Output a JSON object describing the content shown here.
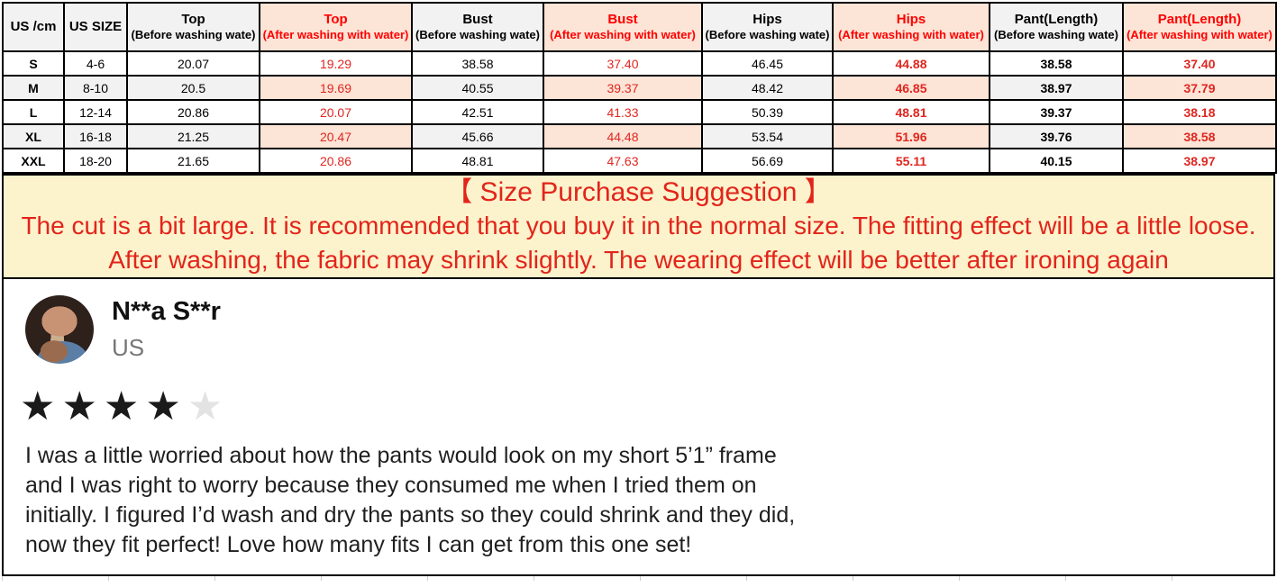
{
  "size_chart": {
    "columns": [
      {
        "label": "US /cm",
        "variant": "plain"
      },
      {
        "label": "US SIZE",
        "variant": "plain"
      },
      {
        "title": "Top",
        "sub": "(Before washing wate)",
        "variant": "before"
      },
      {
        "title": "Top",
        "sub": "(After washing with water)",
        "variant": "after"
      },
      {
        "title": "Bust",
        "sub": "(Before washing wate)",
        "variant": "before"
      },
      {
        "title": "Bust",
        "sub": "(After washing with water)",
        "variant": "after"
      },
      {
        "title": "Hips",
        "sub": "(Before washing wate)",
        "variant": "before"
      },
      {
        "title": "Hips",
        "sub": "(After washing with water)",
        "variant": "after"
      },
      {
        "title": "Pant(Length)",
        "sub": "(Before washing wate)",
        "variant": "before"
      },
      {
        "title": "Pant(Length)",
        "sub": "(After washing with water)",
        "variant": "after"
      }
    ],
    "rows": [
      [
        "S",
        "4-6",
        "20.07",
        "19.29",
        "38.58",
        "37.40",
        "46.45",
        "44.88",
        "38.58",
        "37.40"
      ],
      [
        "M",
        "8-10",
        "20.5",
        "19.69",
        "40.55",
        "39.37",
        "48.42",
        "46.85",
        "38.97",
        "37.79"
      ],
      [
        "L",
        "12-14",
        "20.86",
        "20.07",
        "42.51",
        "41.33",
        "50.39",
        "48.81",
        "39.37",
        "38.18"
      ],
      [
        "XL",
        "16-18",
        "21.25",
        "20.47",
        "45.66",
        "44.48",
        "53.54",
        "51.96",
        "39.76",
        "38.58"
      ],
      [
        "XXL",
        "18-20",
        "21.65",
        "20.86",
        "48.81",
        "47.63",
        "56.69",
        "55.11",
        "40.15",
        "38.97"
      ]
    ],
    "bold_columns": [
      0,
      7,
      8,
      9
    ],
    "after_columns": [
      3,
      5,
      7,
      9
    ]
  },
  "suggestion": {
    "title": "【 Size Purchase Suggestion 】",
    "body": "The cut is a bit large. It is recommended that you buy it in the normal size. The fitting effect will be a little loose. After washing, the fabric may shrink slightly. The wearing effect will be better after ironing again"
  },
  "review": {
    "reviewer": "N**a S**r",
    "location": "US",
    "rating": 4,
    "max_rating": 5,
    "lines": [
      "I was a little worried about how the pants would look on my short 5’1” frame",
      "and I was right to worry because they consumed me when I tried them on",
      "initially. I figured I’d wash and dry the pants so they could shrink and they did,",
      "now they fit perfect! Love how many fits I can get from this one set!"
    ]
  },
  "icons": {
    "star_icon": "★"
  },
  "colors": {
    "table_header_red": "#ff0000",
    "value_red": "#e02620",
    "pink_fill": "#fce4d6",
    "gray_fill": "#f2f2f2",
    "banner_bg": "#fcf2cc",
    "banner_red": "#e2241b",
    "star_filled": "#1a1a1a",
    "star_empty": "#e3e3e3",
    "border_black": "#000000"
  }
}
